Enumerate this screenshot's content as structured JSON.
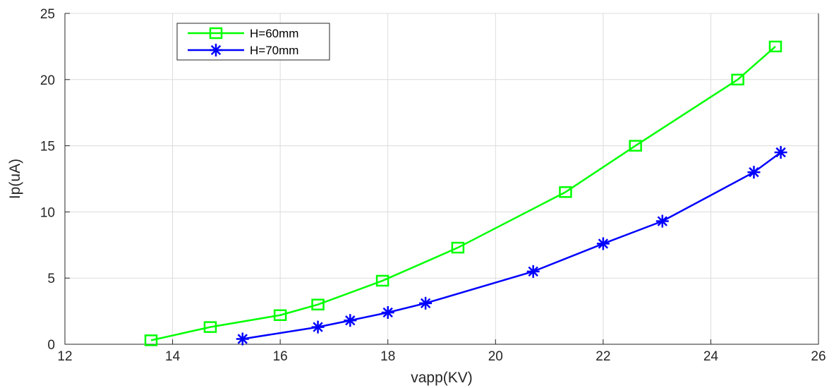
{
  "chart_data": {
    "type": "line",
    "title": "",
    "xlabel": "vapp(KV)",
    "ylabel": "Ip(uA)",
    "xlim": [
      12,
      26
    ],
    "ylim": [
      0,
      25
    ],
    "xticks": [
      12,
      14,
      16,
      18,
      20,
      22,
      24,
      26
    ],
    "yticks": [
      0,
      5,
      10,
      15,
      20,
      25
    ],
    "grid": true,
    "legend_position": "top-left",
    "series": [
      {
        "name": "H=60mm",
        "color": "#00ff00",
        "marker": "square",
        "x": [
          13.6,
          14.7,
          16.0,
          16.7,
          17.9,
          19.3,
          21.3,
          22.6,
          24.5,
          25.2
        ],
        "y": [
          0.3,
          1.3,
          2.2,
          3.0,
          4.8,
          7.3,
          11.5,
          15.0,
          20.0,
          22.5
        ]
      },
      {
        "name": "H=70mm",
        "color": "#0000ff",
        "marker": "asterisk",
        "x": [
          15.3,
          16.7,
          17.3,
          18.0,
          18.7,
          20.7,
          22.0,
          23.1,
          24.8,
          25.3
        ],
        "y": [
          0.4,
          1.3,
          1.8,
          2.4,
          3.1,
          5.5,
          7.6,
          9.3,
          13.0,
          14.5
        ]
      }
    ]
  }
}
